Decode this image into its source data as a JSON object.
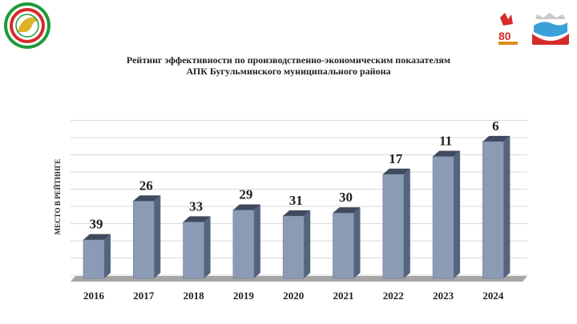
{
  "colors": {
    "bar_front": "#8c9bb5",
    "bar_side": "#55647d",
    "bar_top": "#3f4a5e",
    "grid": "#d9d9d9",
    "floor": "#a6a6a6",
    "logo_green": "#1e9a3a",
    "logo_red": "#d62b2b"
  },
  "icons": {
    "left_logo": "tatarstan-emblem-icon",
    "right_logo_1": "victory-80-icon",
    "right_logo_2": "bugulma-coat-of-arms-icon"
  },
  "header": {
    "title_line1": "Рейтинг эффективности по производственно-экономическим показателям",
    "title_line2": "АПК Бугульминского муниципального района"
  },
  "chart_data": {
    "type": "bar",
    "title": "Рейтинг эффективности по производственно-экономическим показателям АПК Бугульминского муниципального района",
    "xlabel": "",
    "ylabel": "МЕСТО В РЕЙТИНГЕ",
    "categories": [
      "2016",
      "2017",
      "2018",
      "2019",
      "2020",
      "2021",
      "2022",
      "2023",
      "2024"
    ],
    "values": [
      39,
      26,
      33,
      29,
      31,
      30,
      17,
      11,
      6
    ],
    "scale": "inverted rank (lower place = taller bar)",
    "grid": true,
    "legend": "none",
    "style": "3d"
  }
}
